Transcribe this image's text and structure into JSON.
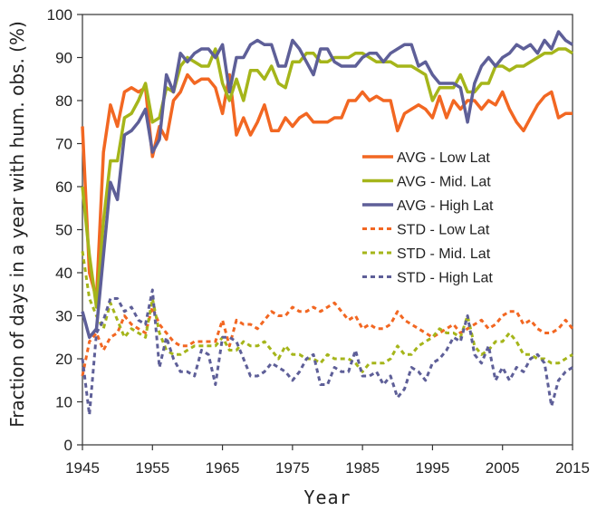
{
  "chart_data": {
    "type": "line",
    "xlabel": "Year",
    "ylabel": "Fraction of days in a year with hum. obs. (%)",
    "xlim": [
      1945,
      2015
    ],
    "ylim": [
      0,
      100
    ],
    "x_ticks": [
      1945,
      1955,
      1965,
      1975,
      1985,
      1995,
      2005,
      2015
    ],
    "y_ticks": [
      0,
      10,
      20,
      30,
      40,
      50,
      60,
      70,
      80,
      90,
      100
    ],
    "grid": false,
    "legend_position": "right-center",
    "x": [
      1945,
      1946,
      1947,
      1948,
      1949,
      1950,
      1951,
      1952,
      1953,
      1954,
      1955,
      1956,
      1957,
      1958,
      1959,
      1960,
      1961,
      1962,
      1963,
      1964,
      1965,
      1966,
      1967,
      1968,
      1969,
      1970,
      1971,
      1972,
      1973,
      1974,
      1975,
      1976,
      1977,
      1978,
      1979,
      1980,
      1981,
      1982,
      1983,
      1984,
      1985,
      1986,
      1987,
      1988,
      1989,
      1990,
      1991,
      1992,
      1993,
      1994,
      1995,
      1996,
      1997,
      1998,
      1999,
      2000,
      2001,
      2002,
      2003,
      2004,
      2005,
      2006,
      2007,
      2008,
      2009,
      2010,
      2011,
      2012,
      2013,
      2014,
      2015
    ],
    "series": [
      {
        "name": "AVG - Low Lat",
        "color": "#f26722",
        "dash": "solid",
        "values": [
          74,
          40,
          34,
          68,
          79,
          74,
          82,
          83,
          82,
          83,
          67,
          74,
          71,
          80,
          82,
          86,
          84,
          85,
          85,
          83,
          77,
          86,
          72,
          76,
          72,
          75,
          79,
          73,
          73,
          76,
          74,
          76,
          77,
          75,
          75,
          75,
          76,
          76,
          80,
          80,
          82,
          80,
          81,
          80,
          80,
          73,
          77,
          78,
          79,
          78,
          76,
          81,
          76,
          80,
          78,
          80,
          80,
          78,
          80,
          79,
          82,
          78,
          75,
          73,
          76,
          79,
          81,
          82,
          76,
          77,
          77
        ]
      },
      {
        "name": "AVG - Mid. Lat",
        "color": "#a5b51a",
        "dash": "solid",
        "values": [
          60,
          44,
          32,
          52,
          66,
          66,
          76,
          77,
          80,
          84,
          75,
          76,
          83,
          82,
          88,
          90,
          89,
          88,
          88,
          92,
          84,
          80,
          85,
          80,
          87,
          87,
          85,
          88,
          84,
          83,
          89,
          89,
          91,
          91,
          89,
          89,
          90,
          90,
          90,
          91,
          91,
          90,
          89,
          89,
          89,
          88,
          88,
          88,
          87,
          86,
          80,
          83,
          83,
          83,
          86,
          82,
          82,
          84,
          84,
          88,
          88,
          87,
          88,
          88,
          89,
          90,
          91,
          91,
          92,
          92,
          91
        ]
      },
      {
        "name": "AVG - High Lat",
        "color": "#5e5f98",
        "dash": "solid",
        "values": [
          31,
          25,
          27,
          44,
          61,
          57,
          72,
          73,
          75,
          78,
          68,
          71,
          86,
          82,
          91,
          89,
          91,
          92,
          92,
          90,
          93,
          82,
          90,
          90,
          93,
          94,
          93,
          93,
          88,
          88,
          94,
          92,
          89,
          86,
          92,
          92,
          89,
          88,
          88,
          88,
          90,
          91,
          91,
          89,
          91,
          92,
          93,
          93,
          88,
          89,
          86,
          84,
          84,
          84,
          83,
          75,
          84,
          88,
          90,
          88,
          90,
          91,
          93,
          92,
          93,
          91,
          94,
          92,
          96,
          94,
          93
        ]
      },
      {
        "name": "STD - Low Lat",
        "color": "#f26722",
        "dash": "dashed",
        "values": [
          16,
          24,
          26,
          22,
          25,
          26,
          30,
          28,
          27,
          26,
          32,
          28,
          26,
          24,
          23,
          23,
          24,
          24,
          24,
          24,
          29,
          23,
          29,
          28,
          28,
          27,
          29,
          31,
          30,
          30,
          32,
          31,
          31,
          32,
          31,
          32,
          33,
          31,
          29,
          30,
          27,
          28,
          27,
          27,
          28,
          31,
          29,
          28,
          27,
          26,
          25,
          26,
          27,
          28,
          26,
          27,
          28,
          29,
          27,
          28,
          30,
          31,
          31,
          28,
          29,
          27,
          26,
          26,
          27,
          29,
          27
        ]
      },
      {
        "name": "STD - Mid. Lat",
        "color": "#a5b51a",
        "dash": "dashed",
        "values": [
          45,
          34,
          30,
          27,
          33,
          29,
          25,
          27,
          26,
          25,
          34,
          26,
          22,
          21,
          21,
          22,
          23,
          23,
          23,
          23,
          25,
          22,
          22,
          24,
          23,
          23,
          24,
          22,
          20,
          23,
          21,
          21,
          20,
          20,
          19,
          21,
          20,
          20,
          20,
          19,
          17,
          19,
          19,
          19,
          20,
          23,
          21,
          21,
          23,
          24,
          25,
          27,
          26,
          26,
          25,
          30,
          23,
          21,
          22,
          24,
          24,
          26,
          24,
          21,
          21,
          20,
          20,
          19,
          19,
          20,
          21
        ]
      },
      {
        "name": "STD - High Lat",
        "color": "#5e5f98",
        "dash": "dashed",
        "values": [
          20,
          7,
          26,
          29,
          34,
          34,
          31,
          32,
          29,
          28,
          36,
          18,
          25,
          20,
          17,
          17,
          16,
          22,
          21,
          14,
          25,
          25,
          24,
          20,
          16,
          16,
          17,
          19,
          18,
          17,
          15,
          17,
          20,
          21,
          14,
          14,
          18,
          17,
          17,
          22,
          16,
          16,
          17,
          14,
          16,
          11,
          13,
          18,
          17,
          15,
          19,
          20,
          22,
          25,
          24,
          30,
          21,
          19,
          23,
          15,
          18,
          15,
          18,
          17,
          20,
          21,
          19,
          9,
          15,
          17,
          18
        ]
      }
    ]
  }
}
